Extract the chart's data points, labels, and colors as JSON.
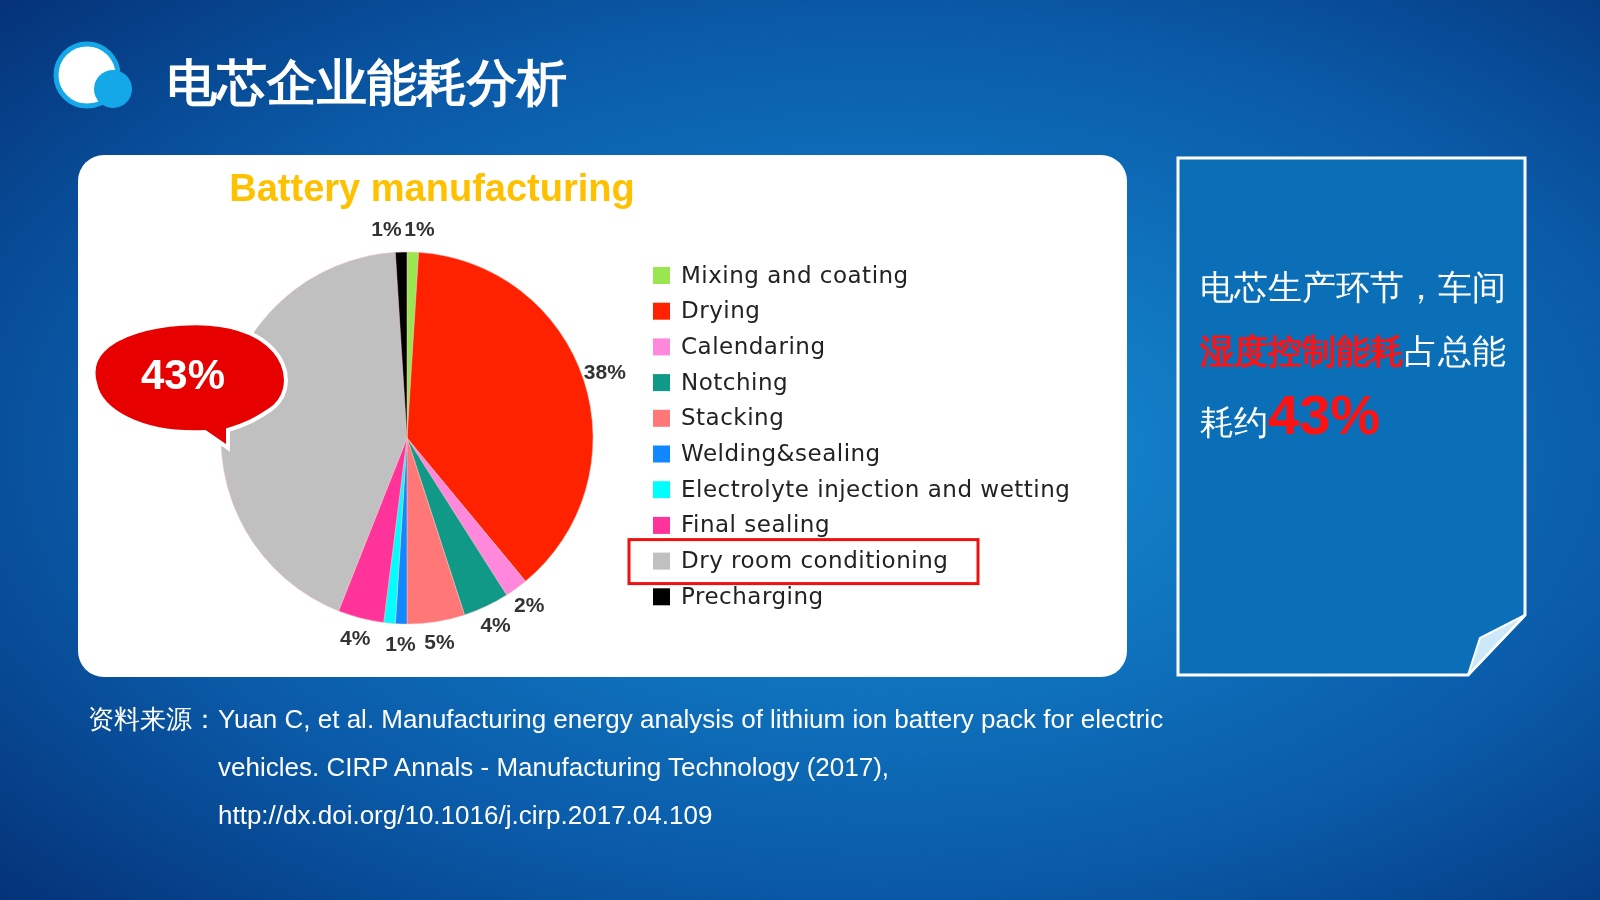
{
  "chart_data": {
    "type": "pie",
    "title": "电芯企业能耗分析",
    "subtitle": "Battery manufacturing",
    "categories": [
      "Mixing and coating",
      "Drying",
      "Calendaring",
      "Notching",
      "Stacking",
      "Welding&sealing",
      "Electrolyte injection and wetting",
      "Final sealing",
      "Dry room conditioning",
      "Precharging"
    ],
    "values": [
      1,
      38,
      2,
      4,
      5,
      1,
      1,
      4,
      43,
      1
    ],
    "value_labels": [
      "1%",
      "38%",
      "2%",
      "4%",
      "5%",
      "1%",
      null,
      "4%",
      null,
      "1%"
    ],
    "colors": [
      "#99e650",
      "#ff2200",
      "#ff88dd",
      "#119988",
      "#ff7777",
      "#1188ff",
      "#00ffff",
      "#ff3399",
      "#c0c0c0",
      "#000000"
    ],
    "legend": "right",
    "annotations": [
      "43%",
      "电芯生产环节，车间",
      "湿度控制能耗",
      "占总能耗约",
      "43%",
      "资料来源：",
      "Yuan C, et al. Manufacturing energy analysis of lithium ion battery pack for electric vehicles. CIRP Annals - Manufacturing Technology (2017), http://dx.doi.org/10.1016/j.cirp.2017.04.109"
    ]
  }
}
